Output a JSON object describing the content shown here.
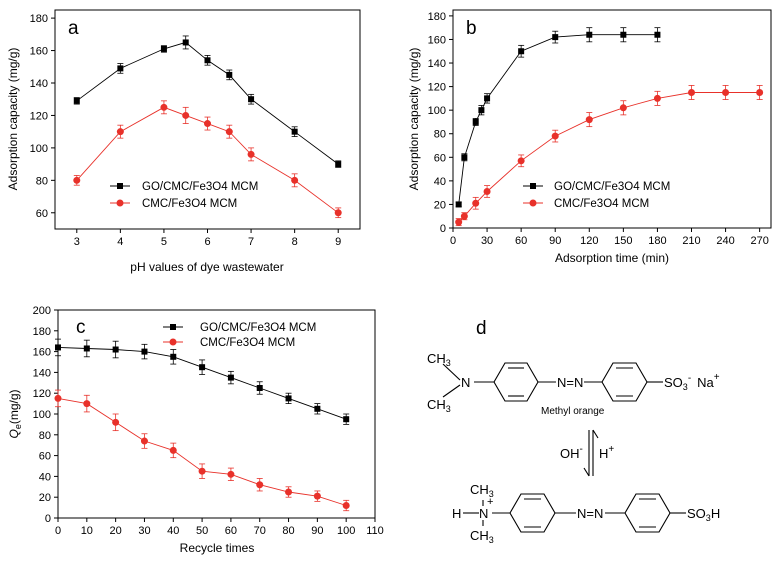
{
  "chart_data": [
    {
      "type": "line",
      "panel_label": "a",
      "xlabel": "pH values of dye wastewater",
      "ylabel": "Adsorption capacity (mg/g)",
      "xlim": [
        2.5,
        9.5
      ],
      "ylim": [
        50,
        185
      ],
      "xticks": [
        3,
        4,
        5,
        6,
        7,
        8,
        9
      ],
      "yticks": [
        60,
        80,
        100,
        120,
        140,
        160,
        180
      ],
      "legend_position": "center-left",
      "series": [
        {
          "name": "GO/CMC/Fe3O4 MCM",
          "color": "#000000",
          "marker": "square",
          "x": [
            3,
            4,
            5,
            5.5,
            6,
            6.5,
            7,
            8,
            9
          ],
          "y": [
            129,
            149,
            161,
            165,
            154,
            145,
            130,
            110,
            90
          ],
          "err": [
            2,
            3,
            2,
            4,
            3,
            3,
            3,
            3,
            2
          ]
        },
        {
          "name": "CMC/Fe3O4 MCM",
          "color": "#e8312a",
          "marker": "circle",
          "x": [
            3,
            4,
            5,
            5.5,
            6,
            6.5,
            7,
            8,
            9
          ],
          "y": [
            80,
            110,
            125,
            120,
            115,
            110,
            96,
            80,
            60
          ],
          "err": [
            3,
            4,
            4,
            5,
            4,
            4,
            4,
            4,
            3
          ]
        }
      ]
    },
    {
      "type": "line",
      "panel_label": "b",
      "xlabel": "Adsorption time (min)",
      "ylabel": "Adsorption capacity (mg/g)",
      "xlim": [
        0,
        280
      ],
      "ylim": [
        0,
        185
      ],
      "xticks": [
        0,
        30,
        60,
        90,
        120,
        150,
        180,
        210,
        240,
        270
      ],
      "yticks": [
        0,
        20,
        40,
        60,
        80,
        100,
        120,
        140,
        160,
        180
      ],
      "legend_position": "center-right",
      "series": [
        {
          "name": "GO/CMC/Fe3O4 MCM",
          "color": "#000000",
          "marker": "square",
          "x": [
            5,
            10,
            20,
            25,
            30,
            60,
            90,
            120,
            150,
            180
          ],
          "y": [
            20,
            60,
            90,
            100,
            110,
            150,
            162,
            164,
            164,
            164
          ],
          "err": [
            2,
            3,
            3,
            4,
            4,
            5,
            5,
            6,
            6,
            6
          ]
        },
        {
          "name": "CMC/Fe3O4 MCM",
          "color": "#e8312a",
          "marker": "circle",
          "x": [
            5,
            10,
            20,
            30,
            60,
            90,
            120,
            150,
            180,
            210,
            240,
            270
          ],
          "y": [
            5,
            10,
            21,
            31,
            57,
            78,
            92,
            102,
            110,
            115,
            115,
            115
          ],
          "err": [
            3,
            3,
            5,
            5,
            5,
            5,
            6,
            6,
            6,
            6,
            6,
            6
          ]
        }
      ]
    },
    {
      "type": "line",
      "panel_label": "c",
      "xlabel": "Recycle times",
      "ylabel_main": "Q",
      "ylabel_sub": "e",
      "ylabel_rest": "(mg/g)",
      "xlim": [
        0,
        110
      ],
      "ylim": [
        0,
        200
      ],
      "xticks": [
        0,
        10,
        20,
        30,
        40,
        50,
        60,
        70,
        80,
        90,
        100,
        110
      ],
      "yticks": [
        0,
        20,
        40,
        60,
        80,
        100,
        120,
        140,
        160,
        180,
        200
      ],
      "legend_position": "top-right",
      "series": [
        {
          "name": "GO/CMC/Fe3O4 MCM",
          "color": "#000000",
          "marker": "square",
          "x": [
            0,
            10,
            20,
            30,
            40,
            50,
            60,
            70,
            80,
            90,
            100
          ],
          "y": [
            164,
            163,
            162,
            160,
            155,
            145,
            135,
            125,
            115,
            105,
            95
          ],
          "err": [
            8,
            8,
            8,
            7,
            7,
            7,
            6,
            6,
            5,
            5,
            5
          ]
        },
        {
          "name": "CMC/Fe3O4 MCM",
          "color": "#e8312a",
          "marker": "circle",
          "x": [
            0,
            10,
            20,
            30,
            40,
            50,
            60,
            70,
            80,
            90,
            100
          ],
          "y": [
            115,
            110,
            92,
            74,
            65,
            45,
            42,
            32,
            25,
            21,
            12
          ],
          "err": [
            8,
            8,
            8,
            7,
            7,
            7,
            6,
            6,
            5,
            5,
            5
          ]
        }
      ]
    }
  ],
  "diagram": {
    "panel_label": "d",
    "ch3": "CH",
    "three": "3",
    "n": "N",
    "h": "H",
    "plus": "+",
    "azo": "N=N",
    "so3_top": "SO",
    "so3_top_sub": "3",
    "so3_top_charge": "-",
    "na": "Na",
    "na_charge": "+",
    "caption": "Methyl orange",
    "oh": "OH",
    "oh_charge": "-",
    "hplus": "H",
    "hplus_charge": "+",
    "so3h_a": "SO",
    "so3h_sub": "3",
    "so3h_b": "H"
  }
}
